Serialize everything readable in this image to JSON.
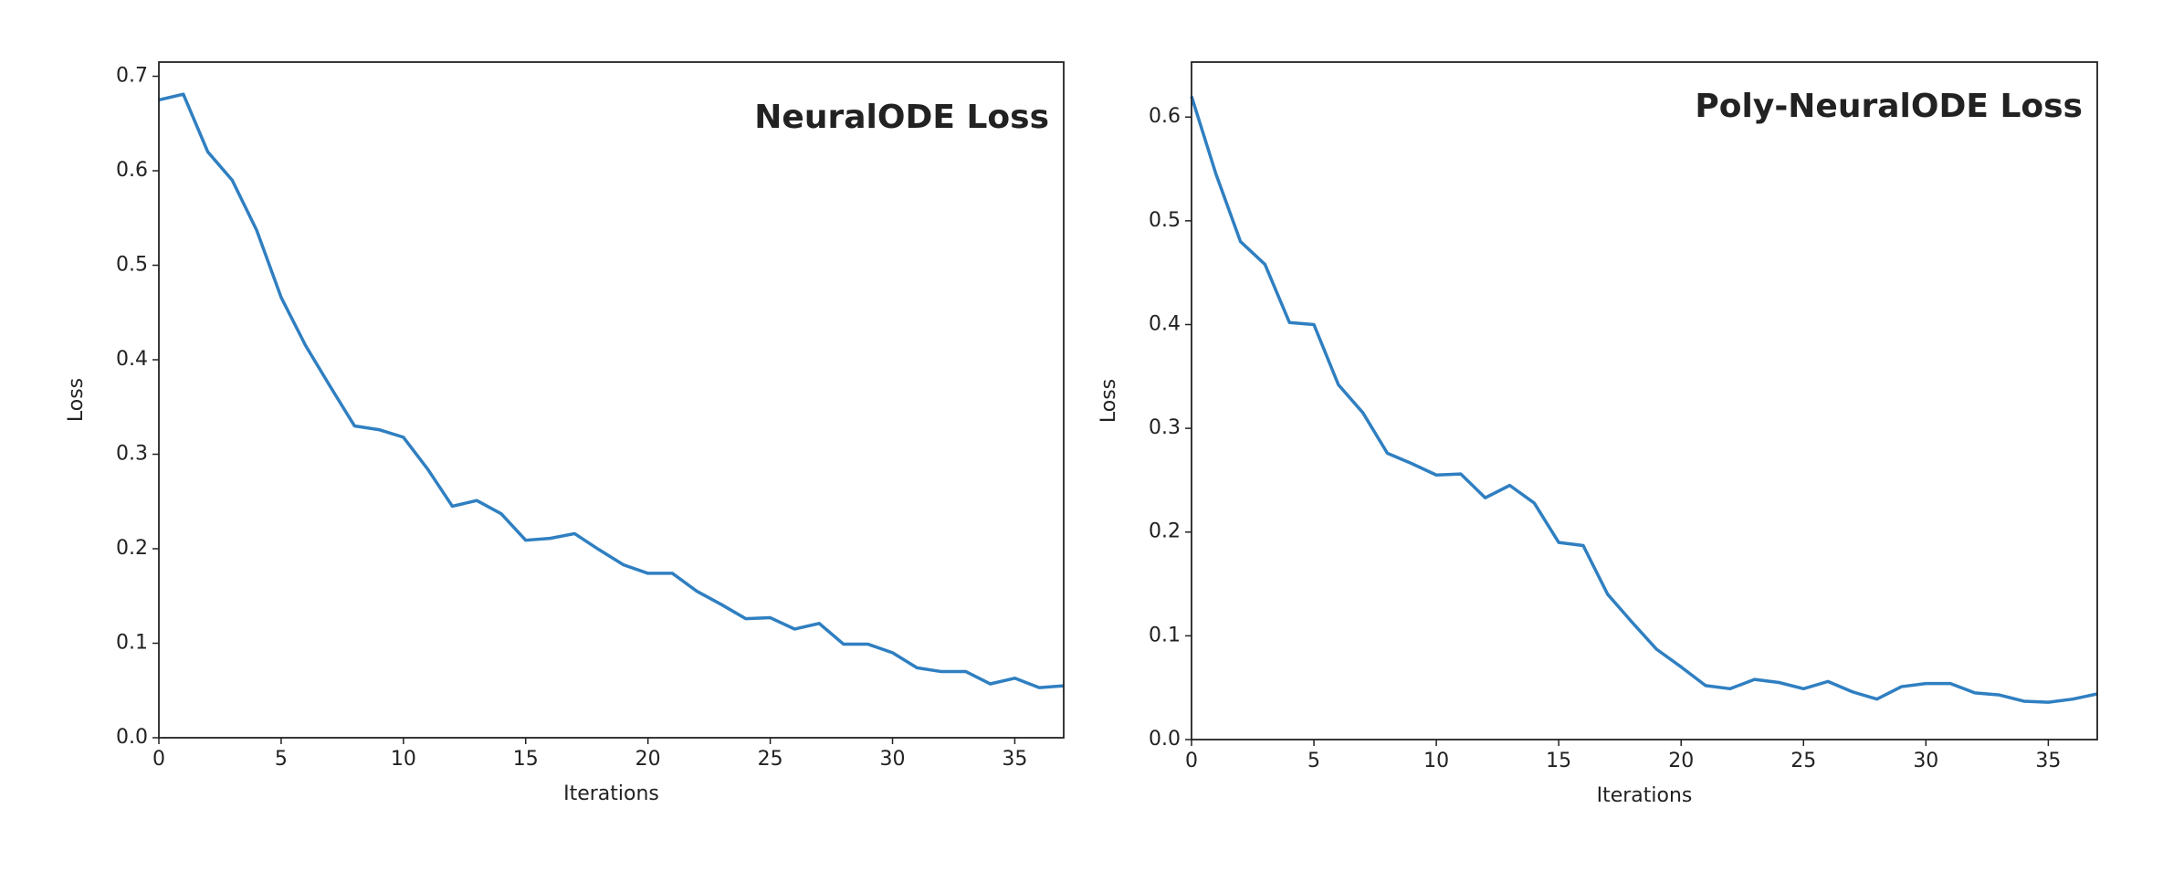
{
  "chart_data": [
    {
      "type": "line",
      "title": "NeuralODE Loss",
      "x_label": "Iterations",
      "y_label": "Loss",
      "color": "#2f7fc1",
      "x": [
        0,
        1,
        2,
        3,
        4,
        5,
        6,
        7,
        8,
        9,
        10,
        11,
        12,
        13,
        14,
        15,
        16,
        17,
        18,
        19,
        20,
        21,
        22,
        23,
        24,
        25,
        26,
        27,
        28,
        29,
        30,
        31,
        32,
        33,
        34,
        35,
        36,
        37
      ],
      "values": [
        0.675,
        0.681,
        0.62,
        0.59,
        0.537,
        0.466,
        0.415,
        0.372,
        0.33,
        0.326,
        0.318,
        0.284,
        0.245,
        0.251,
        0.237,
        0.209,
        0.211,
        0.216,
        0.199,
        0.183,
        0.174,
        0.174,
        0.155,
        0.141,
        0.126,
        0.127,
        0.115,
        0.121,
        0.099,
        0.099,
        0.09,
        0.074,
        0.07,
        0.07,
        0.057,
        0.063,
        0.053,
        0.055
      ],
      "xlim": [
        0,
        37
      ],
      "xticks": [
        0,
        5,
        10,
        15,
        20,
        25,
        30,
        35
      ],
      "ylim": [
        0,
        0.715
      ],
      "yticks": [
        {
          "value": 0,
          "label": "0.0"
        },
        0.1,
        0.2,
        0.3,
        0.4,
        0.5,
        0.6,
        0.7
      ]
    },
    {
      "type": "line",
      "title": "Poly-NeuralODE Loss",
      "x_label": "Iterations",
      "y_label": "Loss",
      "color": "#2f7fc1",
      "x": [
        0,
        1,
        2,
        3,
        4,
        5,
        6,
        7,
        8,
        9,
        10,
        11,
        12,
        13,
        14,
        15,
        16,
        17,
        18,
        19,
        20,
        21,
        22,
        23,
        24,
        25,
        26,
        27,
        28,
        29,
        30,
        31,
        32,
        33,
        34,
        35,
        36,
        37
      ],
      "values": [
        0.62,
        0.545,
        0.48,
        0.458,
        0.402,
        0.4,
        0.342,
        0.315,
        0.276,
        0.266,
        0.255,
        0.256,
        0.233,
        0.245,
        0.228,
        0.19,
        0.187,
        0.14,
        0.113,
        0.087,
        0.07,
        0.052,
        0.049,
        0.058,
        0.055,
        0.049,
        0.056,
        0.046,
        0.039,
        0.051,
        0.054,
        0.054,
        0.045,
        0.043,
        0.037,
        0.036,
        0.039,
        0.044
      ],
      "xlim": [
        0,
        37
      ],
      "xticks": [
        0,
        5,
        10,
        15,
        20,
        25,
        30,
        35
      ],
      "ylim": [
        0,
        0.653
      ],
      "yticks": [
        {
          "value": 0,
          "label": "0.0"
        },
        0.1,
        0.2,
        0.3,
        0.4,
        0.5,
        0.6
      ]
    }
  ]
}
